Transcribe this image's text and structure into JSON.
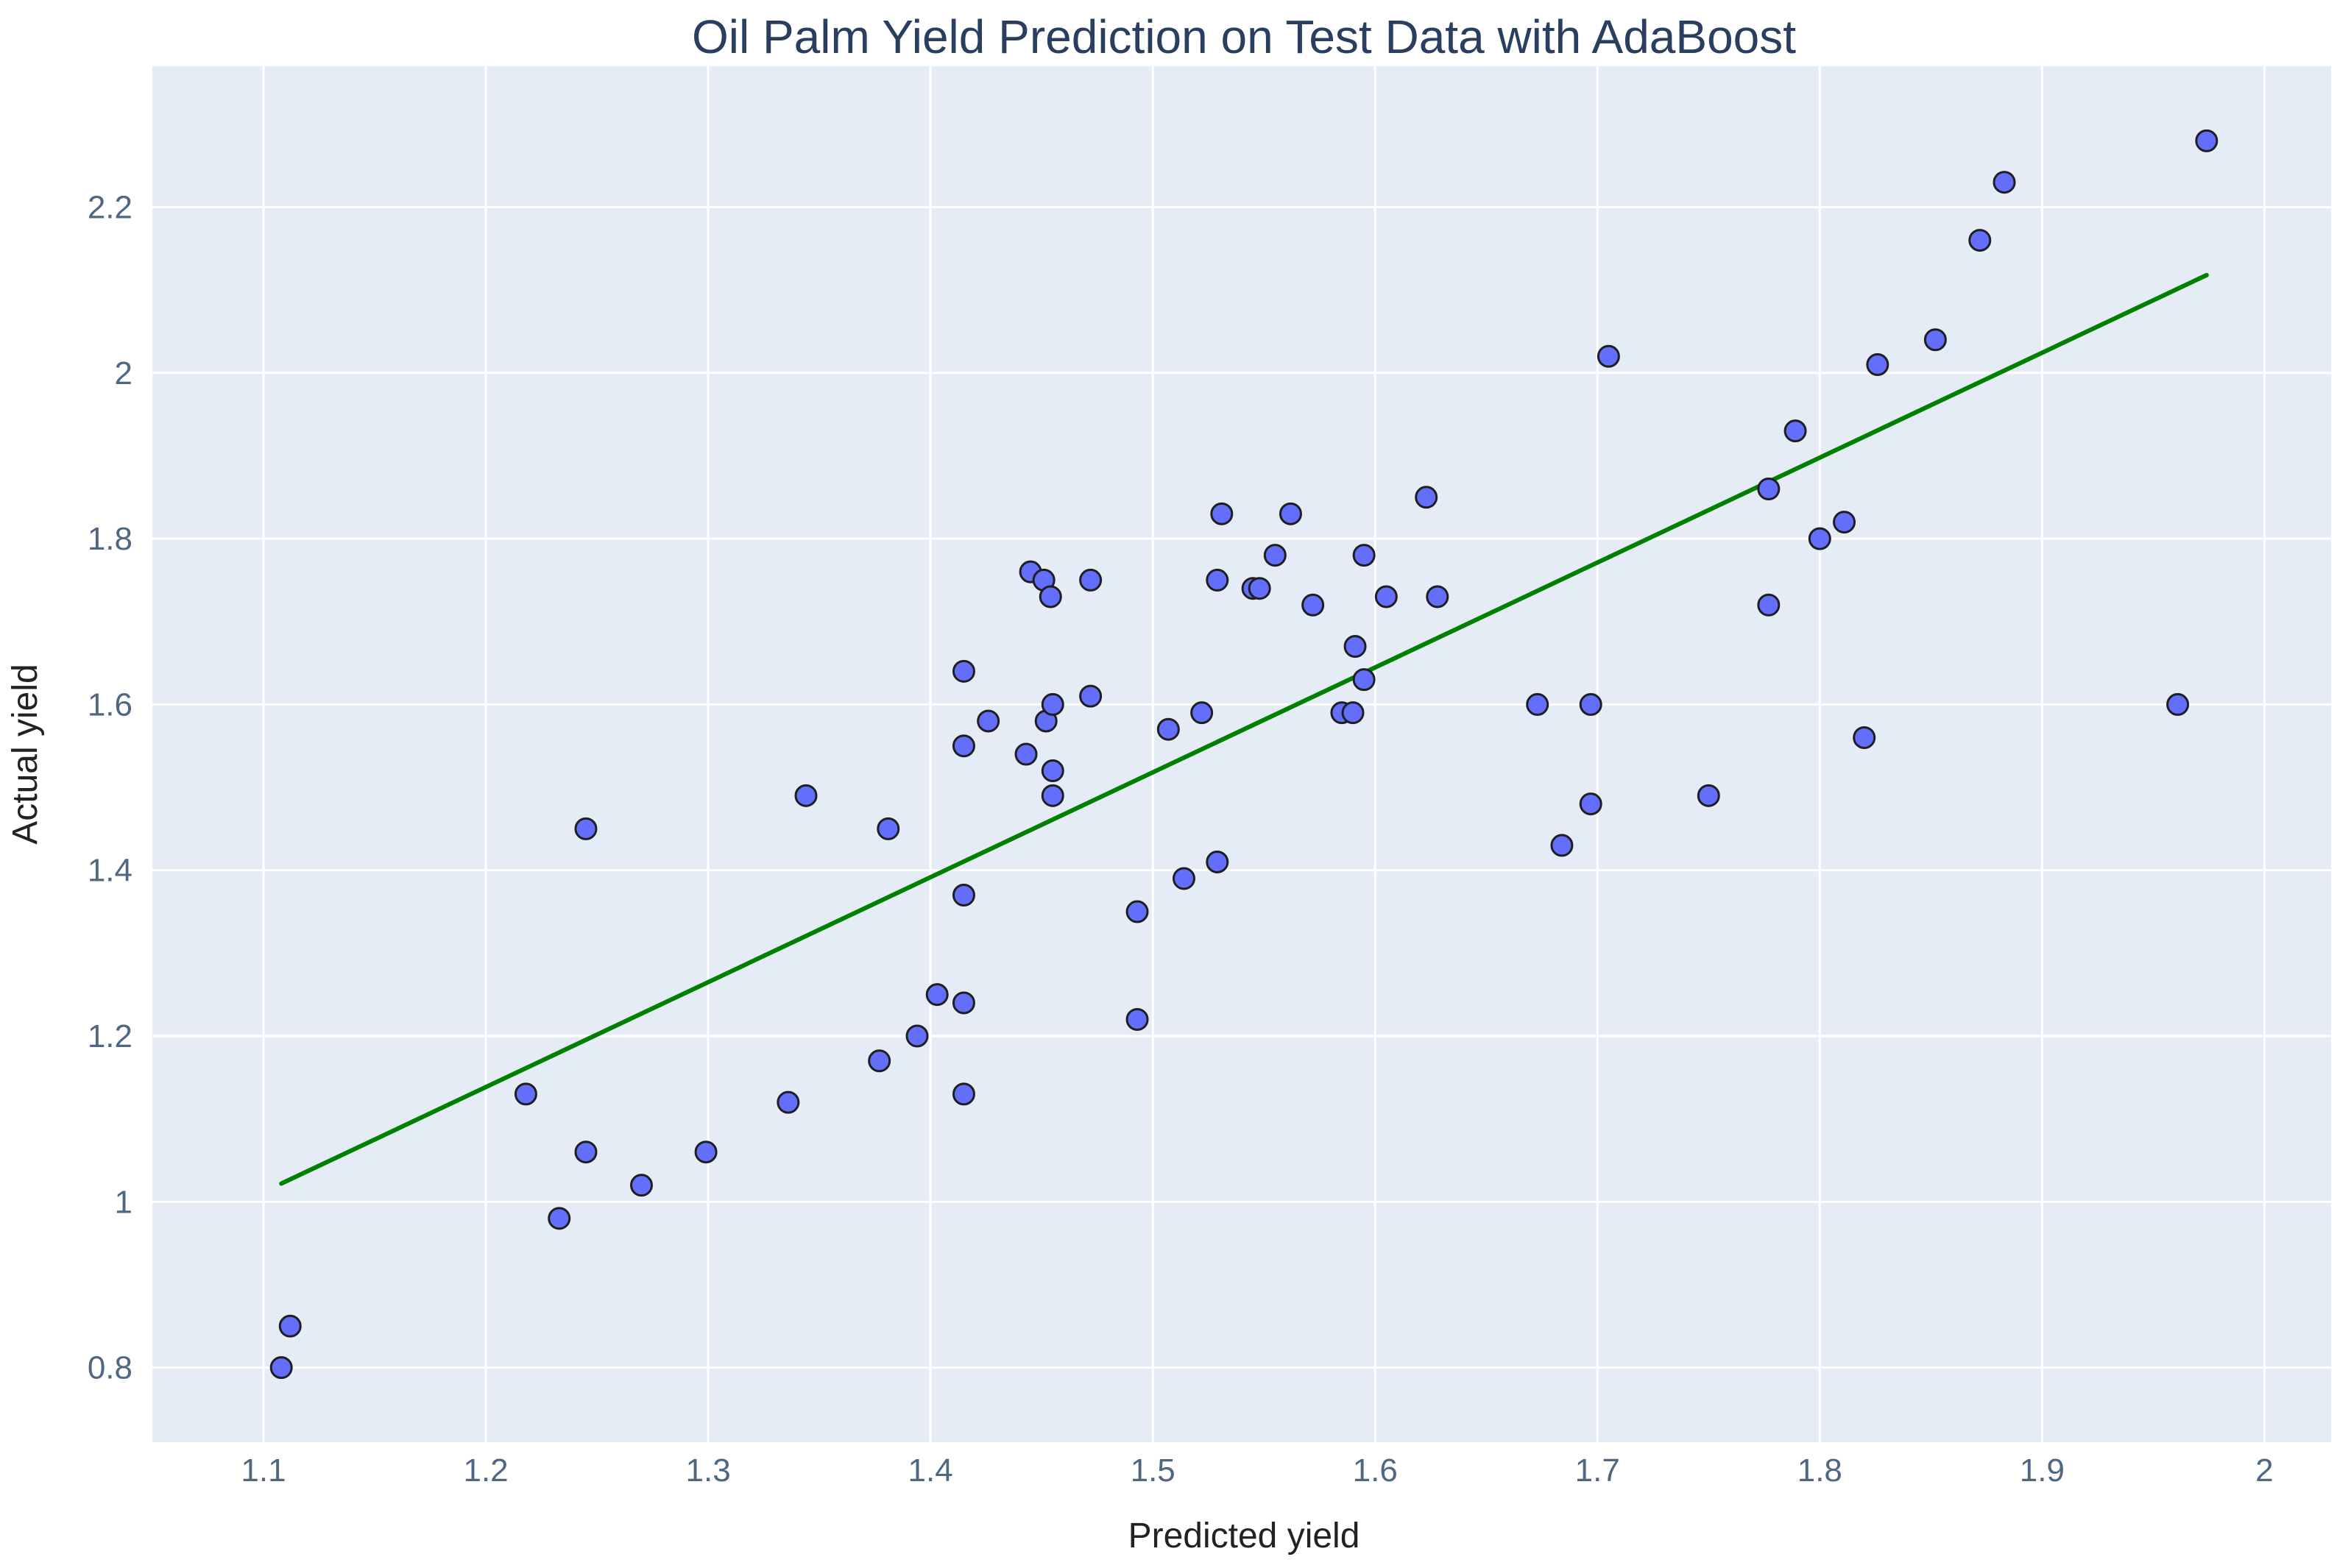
{
  "chart_data": {
    "type": "scatter",
    "title": "Oil Palm Yield Prediction on Test Data with AdaBoost",
    "xlabel": "Predicted yield",
    "ylabel": "Actual yield",
    "xlim": [
      1.05,
      2.03
    ],
    "ylim": [
      0.71,
      2.37
    ],
    "x_ticks": [
      1.1,
      1.2,
      1.3,
      1.4,
      1.5,
      1.6,
      1.7,
      1.8,
      1.9,
      2.0
    ],
    "x_tick_labels": [
      "1.1",
      "1.2",
      "1.3",
      "1.4",
      "1.5",
      "1.6",
      "1.7",
      "1.8",
      "1.9",
      "2"
    ],
    "y_ticks": [
      0.8,
      1.0,
      1.2,
      1.4,
      1.6,
      1.8,
      2.0,
      2.2
    ],
    "y_tick_labels": [
      "0.8",
      "1",
      "1.2",
      "1.4",
      "1.6",
      "1.8",
      "2",
      "2.2"
    ],
    "grid": true,
    "colors": {
      "plot_background": "#e5ecf6",
      "grid": "#ffffff",
      "marker_fill": "#636efa",
      "marker_outline": "#1f1f1f",
      "fit_line": "#008000"
    },
    "series": [
      {
        "mode": "markers",
        "x": [
          1.108,
          1.112,
          1.218,
          1.233,
          1.245,
          1.245,
          1.27,
          1.299,
          1.336,
          1.344,
          1.377,
          1.381,
          1.394,
          1.403,
          1.415,
          1.415,
          1.415,
          1.415,
          1.415,
          1.426,
          1.443,
          1.445,
          1.451,
          1.452,
          1.454,
          1.455,
          1.455,
          1.455,
          1.472,
          1.472,
          1.493,
          1.493,
          1.507,
          1.514,
          1.522,
          1.529,
          1.529,
          1.531,
          1.545,
          1.548,
          1.555,
          1.562,
          1.572,
          1.585,
          1.59,
          1.591,
          1.595,
          1.595,
          1.605,
          1.623,
          1.628,
          1.673,
          1.684,
          1.697,
          1.697,
          1.705,
          1.75,
          1.777,
          1.777,
          1.789,
          1.8,
          1.811,
          1.82,
          1.826,
          1.852,
          1.872,
          1.883,
          1.961,
          1.974
        ],
        "y": [
          0.8,
          0.85,
          1.13,
          0.98,
          1.06,
          1.45,
          1.02,
          1.06,
          1.12,
          1.49,
          1.17,
          1.45,
          1.2,
          1.25,
          1.13,
          1.24,
          1.37,
          1.55,
          1.64,
          1.58,
          1.54,
          1.76,
          1.75,
          1.58,
          1.73,
          1.6,
          1.52,
          1.49,
          1.61,
          1.75,
          1.22,
          1.35,
          1.57,
          1.39,
          1.59,
          1.41,
          1.75,
          1.83,
          1.74,
          1.74,
          1.78,
          1.83,
          1.72,
          1.59,
          1.59,
          1.67,
          1.63,
          1.78,
          1.73,
          1.85,
          1.73,
          1.6,
          1.43,
          1.6,
          1.48,
          2.02,
          1.49,
          1.86,
          1.72,
          1.93,
          1.8,
          1.82,
          1.56,
          2.01,
          2.04,
          2.16,
          2.23,
          1.6,
          2.28
        ]
      },
      {
        "mode": "line",
        "x": [
          1.108,
          1.974
        ],
        "y": [
          1.022,
          2.118
        ]
      }
    ]
  }
}
